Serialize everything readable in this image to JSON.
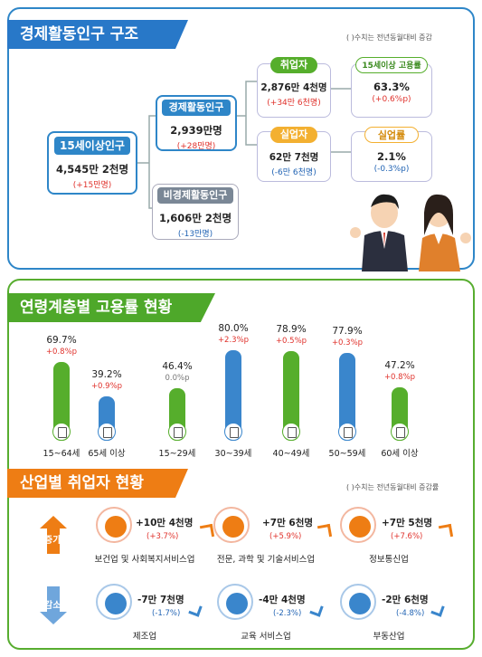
{
  "section1": {
    "title": "경제활동인구 구조",
    "note": "( )수치는 전년동월대비 증감",
    "pop15": {
      "label": "15세이상인구",
      "value": "4,545만 2천명",
      "change": "(+15만명)"
    },
    "econ_active": {
      "label": "경제활동인구",
      "value": "2,939만명",
      "change": "(+28만명)"
    },
    "non_active": {
      "label": "비경제활동인구",
      "value": "1,606만 2천명",
      "change": "(-13만명)"
    },
    "employed": {
      "label": "취업자",
      "value": "2,876만 4천명",
      "change": "(+34만 6천명)"
    },
    "emp_rate": {
      "label": "15세이상 고용률",
      "value": "63.3%",
      "change": "(+0.6%p)"
    },
    "unemployed": {
      "label": "실업자",
      "value": "62만 7천명",
      "change": "(-6만 6천명)"
    },
    "unemp_rate": {
      "label": "실업률",
      "value": "2.1%",
      "change": "(-0.3%p)"
    }
  },
  "section2": {
    "title": "연령계층별 고용률 현황"
  },
  "chart_data": {
    "type": "bar",
    "categories": [
      "15~64세",
      "65세 이상",
      "15~29세",
      "30~39세",
      "40~49세",
      "50~59세",
      "60세 이상"
    ],
    "values": [
      69.7,
      39.2,
      46.4,
      80.0,
      78.9,
      77.9,
      47.2
    ],
    "value_labels": [
      "69.7%",
      "39.2%",
      "46.4%",
      "80.0%",
      "78.9%",
      "77.9%",
      "47.2%"
    ],
    "changes": [
      "+0.8%p",
      "+0.9%p",
      "0.0%p",
      "+2.3%p",
      "+0.5%p",
      "+0.3%p",
      "+0.8%p"
    ],
    "colors": [
      "#56ae2c",
      "#3a86cc",
      "#56ae2c",
      "#3a86cc",
      "#56ae2c",
      "#3a86cc",
      "#56ae2c"
    ],
    "title": "",
    "xlabel": "",
    "ylabel": ""
  },
  "section3": {
    "title": "산업별 취업자 현황",
    "note": "( )수치는 전년동월대비 증감률",
    "increase_label": "증가",
    "decrease_label": "감소",
    "increase": [
      {
        "name": "보건업 및 사회복지서비스업",
        "value": "+10만 4천명",
        "change": "(+3.7%)",
        "icon": "medical-kit-icon"
      },
      {
        "name": "전문, 과학 및 기술서비스업",
        "value": "+7만 6천명",
        "change": "(+5.9%)",
        "icon": "flask-icon"
      },
      {
        "name": "정보통신업",
        "value": "+7만 5천명",
        "change": "(+7.6%)",
        "icon": "phone-icon"
      }
    ],
    "decrease": [
      {
        "name": "제조업",
        "value": "-7만 7천명",
        "change": "(-1.7%)",
        "icon": "gear-icon"
      },
      {
        "name": "교육 서비스업",
        "value": "-4만 4천명",
        "change": "(-2.3%)",
        "icon": "graduation-cap-icon"
      },
      {
        "name": "부동산업",
        "value": "-2만 6천명",
        "change": "(-4.8%)",
        "icon": "house-won-icon"
      }
    ]
  }
}
